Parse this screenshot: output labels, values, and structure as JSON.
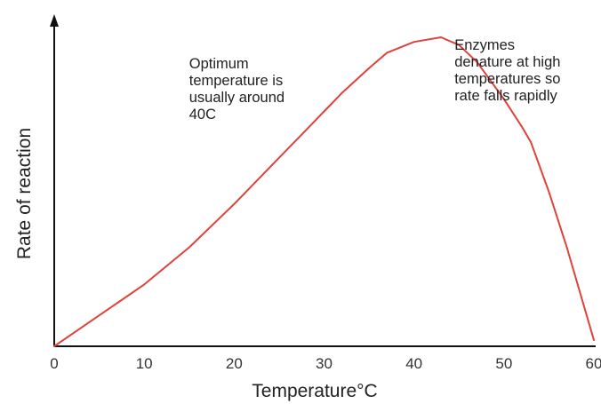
{
  "chart_data": {
    "type": "line",
    "title": "",
    "xlabel": "Temperature°C",
    "ylabel": "Rate of reaction",
    "xlim": [
      0,
      60
    ],
    "x_ticks": [
      "0",
      "10",
      "20",
      "30",
      "40",
      "50",
      "60"
    ],
    "y_ticks": [],
    "grid": false,
    "legend": "none",
    "series": [
      {
        "color": "#e0413a",
        "x": [
          0,
          5,
          10,
          15,
          20,
          25,
          28,
          30,
          32,
          35,
          37,
          40,
          43,
          45,
          47,
          50,
          52,
          53,
          55,
          57,
          60
        ],
        "y": [
          0,
          0.1,
          0.2,
          0.32,
          0.46,
          0.61,
          0.7,
          0.76,
          0.82,
          0.9,
          0.95,
          0.985,
          1.0,
          0.975,
          0.92,
          0.8,
          0.71,
          0.66,
          0.5,
          0.32,
          0.02
        ]
      }
    ],
    "annotations": [
      {
        "lines": [
          "Optimum",
          "temperature is",
          "usually around",
          "40C"
        ],
        "x": 15,
        "y": 0.9
      },
      {
        "lines": [
          "Enzymes",
          "denature at high",
          "temperatures so",
          "rate falls rapidly"
        ],
        "x": 44.5,
        "y": 0.96
      }
    ]
  }
}
